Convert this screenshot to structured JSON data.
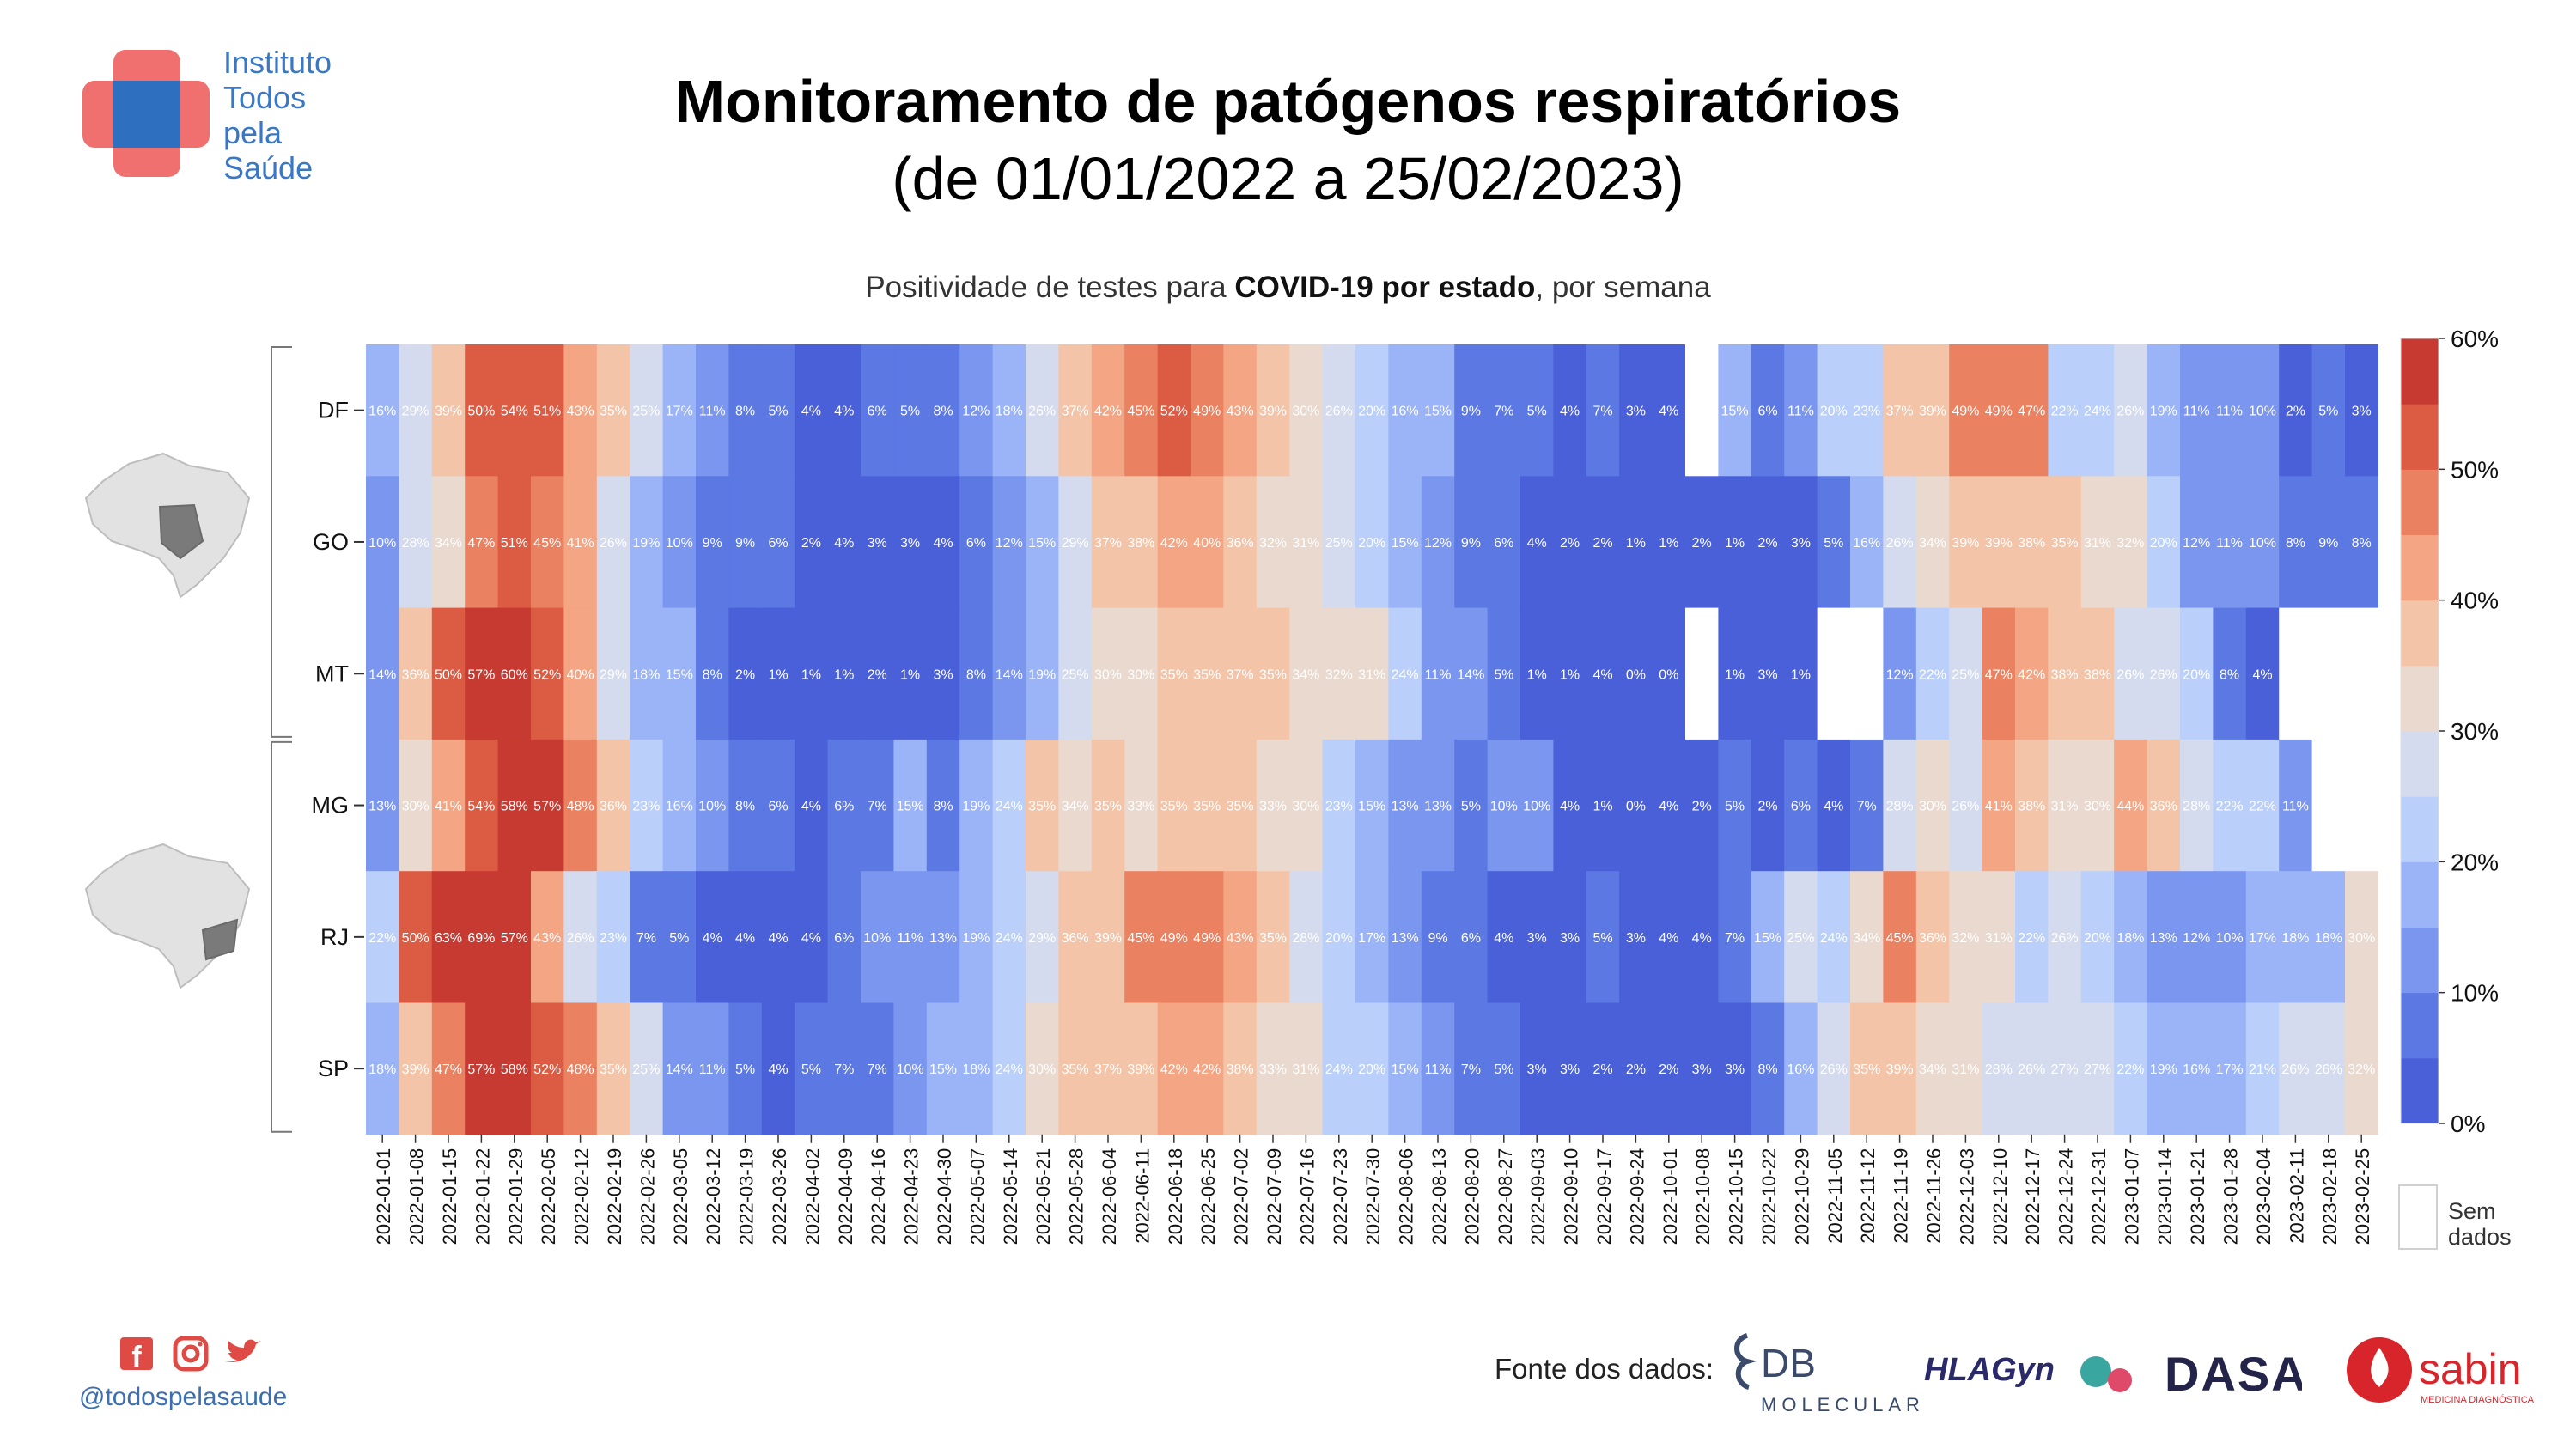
{
  "brand": {
    "lines": [
      "Instituto",
      "Todos",
      "pela",
      "Saúde"
    ]
  },
  "title": "Monitoramento de patógenos respiratórios",
  "subtitle": "(de 01/01/2022 a 25/02/2023)",
  "caption": {
    "pre": "Positividade de testes para ",
    "bold": "COVID-19 por estado",
    "post": ", por semana"
  },
  "legend": {
    "no_data_line1": "Sem",
    "no_data_line2": "dados"
  },
  "footer": {
    "handle": "@todospelasaude",
    "sources_label": "Fonte dos dados:",
    "logos": [
      "DB",
      "MOLECULAR",
      "HLAGyn",
      "DASA",
      "sabin",
      "MEDICINA DIAGNÓSTICA"
    ]
  },
  "icons": [
    "facebook-icon",
    "instagram-icon",
    "twitter-icon",
    "brazil-map-icon"
  ],
  "chart_data": {
    "type": "heatmap",
    "title": "Positividade de testes para COVID-19 por estado, por semana",
    "rows": [
      "DF",
      "GO",
      "MT",
      "MG",
      "RJ",
      "SP"
    ],
    "groups": [
      [
        "DF",
        "GO",
        "MT"
      ],
      [
        "MG",
        "RJ",
        "SP"
      ]
    ],
    "weeks": [
      "2022-01-01",
      "2022-01-08",
      "2022-01-15",
      "2022-01-22",
      "2022-01-29",
      "2022-02-05",
      "2022-02-12",
      "2022-02-19",
      "2022-02-26",
      "2022-03-05",
      "2022-03-12",
      "2022-03-19",
      "2022-03-26",
      "2022-04-02",
      "2022-04-09",
      "2022-04-16",
      "2022-04-23",
      "2022-04-30",
      "2022-05-07",
      "2022-05-14",
      "2022-05-21",
      "2022-05-28",
      "2022-06-04",
      "2022-06-11",
      "2022-06-18",
      "2022-06-25",
      "2022-07-02",
      "2022-07-09",
      "2022-07-16",
      "2022-07-23",
      "2022-07-30",
      "2022-08-06",
      "2022-08-13",
      "2022-08-20",
      "2022-08-27",
      "2022-09-03",
      "2022-09-10",
      "2022-09-17",
      "2022-09-24",
      "2022-10-01",
      "2022-10-08",
      "2022-10-15",
      "2022-10-22",
      "2022-10-29",
      "2022-11-05",
      "2022-11-12",
      "2022-11-19",
      "2022-11-26",
      "2022-12-03",
      "2022-12-10",
      "2022-12-17",
      "2022-12-24",
      "2022-12-31",
      "2023-01-07",
      "2023-01-14",
      "2023-01-21",
      "2023-01-28",
      "2023-02-04",
      "2023-02-11",
      "2023-02-18",
      "2023-02-25"
    ],
    "values": [
      [
        16,
        29,
        39,
        50,
        54,
        51,
        43,
        35,
        25,
        17,
        11,
        8,
        5,
        4,
        4,
        6,
        5,
        8,
        12,
        18,
        26,
        37,
        42,
        45,
        52,
        49,
        43,
        39,
        30,
        26,
        20,
        16,
        15,
        9,
        7,
        5,
        4,
        7,
        3,
        4,
        null,
        15,
        6,
        11,
        20,
        23,
        37,
        39,
        49,
        49,
        47,
        22,
        24,
        26,
        19,
        11,
        11,
        10,
        2,
        5,
        3
      ],
      [
        10,
        28,
        34,
        47,
        51,
        45,
        41,
        26,
        19,
        10,
        9,
        9,
        6,
        2,
        4,
        3,
        3,
        4,
        6,
        12,
        15,
        29,
        37,
        38,
        42,
        40,
        36,
        32,
        31,
        25,
        20,
        15,
        12,
        9,
        6,
        4,
        2,
        2,
        1,
        1,
        2,
        1,
        2,
        3,
        5,
        16,
        26,
        34,
        39,
        39,
        38,
        35,
        31,
        32,
        20,
        12,
        11,
        10,
        8,
        9,
        8
      ],
      [
        14,
        36,
        50,
        57,
        60,
        52,
        40,
        29,
        18,
        15,
        8,
        2,
        1,
        1,
        1,
        2,
        1,
        3,
        8,
        14,
        19,
        25,
        30,
        30,
        35,
        35,
        37,
        35,
        34,
        32,
        31,
        24,
        11,
        14,
        5,
        1,
        1,
        4,
        0,
        0,
        null,
        1,
        3,
        1,
        null,
        null,
        12,
        22,
        25,
        47,
        42,
        38,
        38,
        26,
        26,
        20,
        8,
        4,
        null,
        null,
        null
      ],
      [
        13,
        30,
        41,
        54,
        58,
        57,
        48,
        36,
        23,
        16,
        10,
        8,
        6,
        4,
        6,
        7,
        15,
        8,
        19,
        24,
        35,
        34,
        35,
        33,
        35,
        35,
        35,
        33,
        30,
        23,
        15,
        13,
        13,
        5,
        10,
        10,
        4,
        1,
        0,
        4,
        2,
        5,
        2,
        6,
        4,
        7,
        28,
        30,
        26,
        41,
        38,
        31,
        30,
        44,
        36,
        28,
        22,
        22,
        11,
        null,
        null
      ],
      [
        22,
        50,
        63,
        69,
        57,
        43,
        26,
        23,
        7,
        5,
        4,
        4,
        4,
        4,
        6,
        10,
        11,
        13,
        19,
        24,
        29,
        36,
        39,
        45,
        49,
        49,
        43,
        35,
        28,
        20,
        17,
        13,
        9,
        6,
        4,
        3,
        3,
        5,
        3,
        4,
        4,
        7,
        15,
        25,
        24,
        34,
        45,
        36,
        32,
        31,
        22,
        26,
        20,
        18,
        13,
        12,
        10,
        17,
        18,
        18,
        30
      ],
      [
        18,
        39,
        47,
        57,
        58,
        52,
        48,
        35,
        25,
        14,
        11,
        5,
        4,
        5,
        7,
        7,
        10,
        15,
        18,
        24,
        30,
        35,
        37,
        39,
        42,
        42,
        38,
        33,
        31,
        24,
        20,
        15,
        11,
        7,
        5,
        3,
        3,
        2,
        2,
        2,
        3,
        3,
        8,
        16,
        26,
        35,
        39,
        34,
        31,
        28,
        26,
        27,
        27,
        22,
        19,
        16,
        17,
        21,
        26,
        26,
        32
      ]
    ],
    "value_suffix": "%",
    "colorbar": {
      "min": 0,
      "max": 60,
      "ticks": [
        "0%",
        "10%",
        "20%",
        "30%",
        "40%",
        "50%",
        "60%"
      ],
      "step": 5
    },
    "colors": {
      "scale": [
        "#4a60d8",
        "#5b78e3",
        "#7a96ef",
        "#9ab4f7",
        "#bacff9",
        "#d4dbee",
        "#e9d9cf",
        "#f4c4a8",
        "#f3a584",
        "#ea8160",
        "#db5b43",
        "#c63a31"
      ],
      "no_data": "#ffffff"
    }
  }
}
